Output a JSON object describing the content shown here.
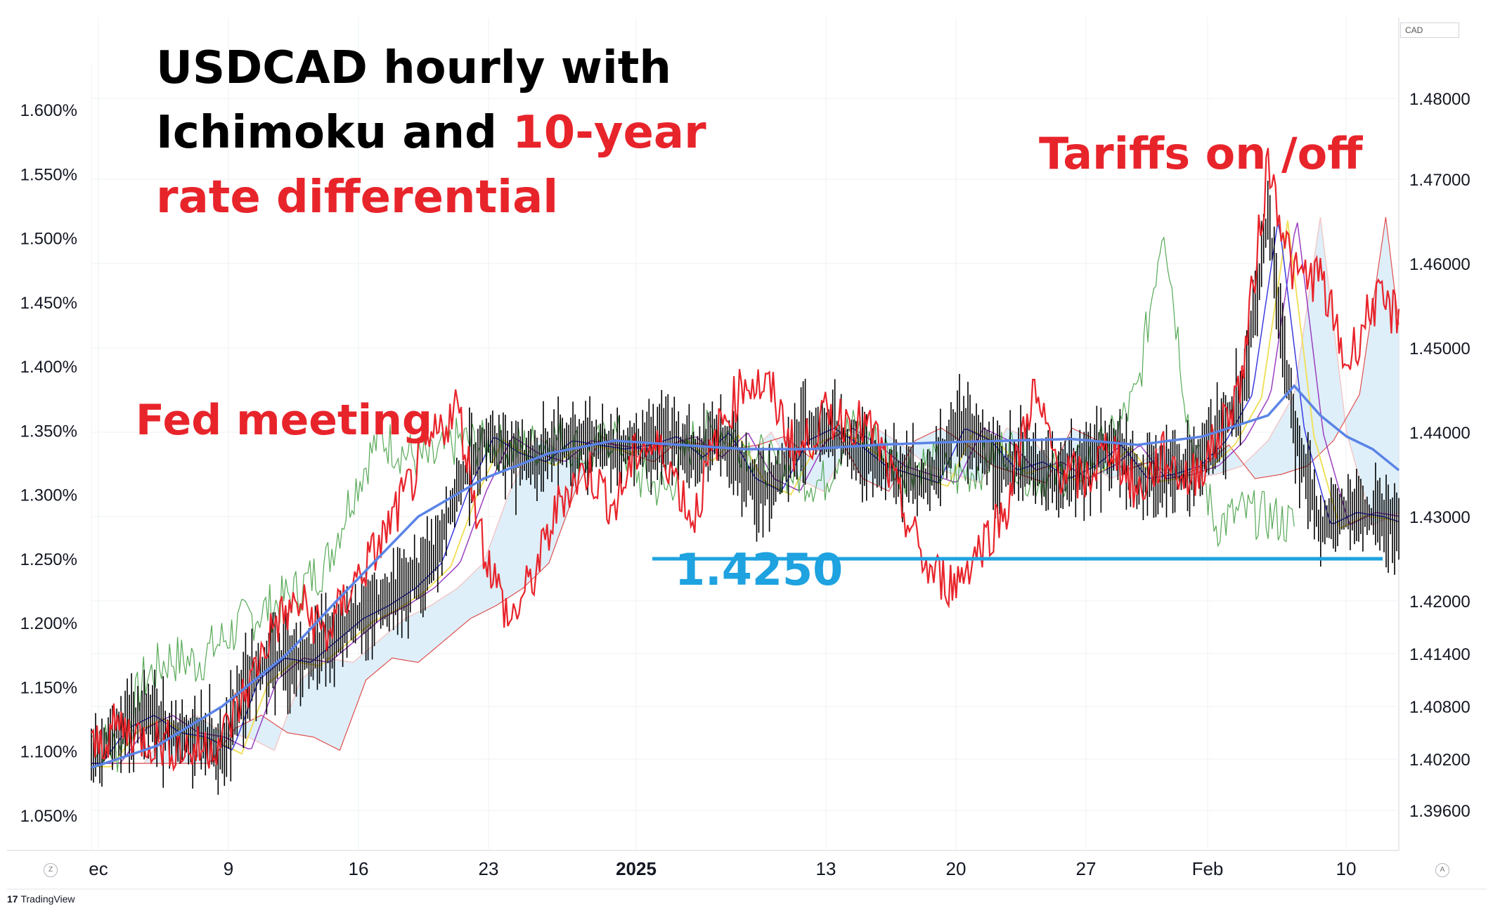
{
  "title": {
    "line1": "USDCAD hourly with",
    "line2_black": "Ichimoku and ",
    "line2_red": "10-year",
    "line3_red": "rate differential"
  },
  "annotations": {
    "fed": "Fed meeting",
    "tariffs": "Tariffs on /off",
    "level": "1.4250"
  },
  "currency_label": "CAD",
  "brand": "TradingView",
  "corner_left": "Z",
  "corner_right": "A",
  "colors": {
    "price": "#000000",
    "rate_diff": "#e8242b",
    "ma_long": "#5b84e6",
    "support": "#1ea2e0",
    "lagging_span": "#3a9a3a",
    "cloud_fill": "#d6ebf8"
  },
  "chart_data": {
    "type": "line",
    "x_axis": {
      "tick_labels": [
        "ec",
        "9",
        "16",
        "23",
        "2025",
        "13",
        "20",
        "27",
        "Feb",
        "10"
      ],
      "bold_tick": "2025"
    },
    "left_axis": {
      "unit": "%",
      "range": [
        1.02,
        1.64
      ],
      "ticks": [
        "1.050%",
        "1.100%",
        "1.150%",
        "1.200%",
        "1.250%",
        "1.300%",
        "1.350%",
        "1.400%",
        "1.450%",
        "1.500%",
        "1.550%",
        "1.600%"
      ]
    },
    "right_axis": {
      "range": [
        1.3925,
        1.4825
      ],
      "ticks": [
        "1.39600",
        "1.40200",
        "1.40800",
        "1.41400",
        "1.42000",
        "1.43000",
        "1.44000",
        "1.45000",
        "1.46000",
        "1.47000",
        "1.48000"
      ]
    },
    "support_level": 1.425,
    "series": [
      {
        "name": "USDCAD",
        "axis": "right",
        "x": [
          0,
          2,
          4,
          6,
          8,
          10,
          12,
          14,
          16,
          18,
          20,
          22,
          24,
          26,
          28,
          30,
          32,
          34,
          36,
          38,
          40,
          42,
          44,
          46,
          48,
          50,
          52,
          54,
          56,
          58,
          60,
          62,
          64,
          66,
          68,
          70,
          72,
          74,
          76,
          78,
          80,
          82,
          84,
          86,
          88,
          90,
          92,
          94,
          96,
          98,
          100
        ],
        "values": [
          1.4015,
          1.4055,
          1.407,
          1.405,
          1.4045,
          1.403,
          1.411,
          1.4135,
          1.413,
          1.4155,
          1.418,
          1.4195,
          1.4215,
          1.4245,
          1.433,
          1.4395,
          1.4375,
          1.4365,
          1.439,
          1.4385,
          1.438,
          1.4385,
          1.4395,
          1.437,
          1.44,
          1.4345,
          1.433,
          1.439,
          1.4405,
          1.4385,
          1.436,
          1.435,
          1.434,
          1.4405,
          1.439,
          1.4355,
          1.4365,
          1.4345,
          1.436,
          1.4385,
          1.4345,
          1.435,
          1.436,
          1.439,
          1.4445,
          1.4655,
          1.44,
          1.429,
          1.4305,
          1.43,
          1.429
        ]
      },
      {
        "name": "10-year rate differential",
        "axis": "left",
        "x": [
          0,
          2,
          4,
          6,
          8,
          10,
          12,
          14,
          16,
          18,
          20,
          22,
          24,
          26,
          28,
          30,
          32,
          34,
          36,
          38,
          40,
          42,
          44,
          46,
          48,
          50,
          52,
          54,
          56,
          58,
          60,
          62,
          64,
          66,
          68,
          70,
          72,
          74,
          76,
          78,
          80,
          82,
          84,
          86,
          88,
          90,
          92,
          94,
          96,
          98,
          100
        ],
        "values": [
          1.1,
          1.12,
          1.11,
          1.105,
          1.1,
          1.11,
          1.15,
          1.2,
          1.215,
          1.19,
          1.23,
          1.26,
          1.3,
          1.34,
          1.37,
          1.26,
          1.2,
          1.24,
          1.3,
          1.32,
          1.29,
          1.34,
          1.33,
          1.28,
          1.35,
          1.39,
          1.38,
          1.33,
          1.36,
          1.36,
          1.345,
          1.29,
          1.24,
          1.23,
          1.26,
          1.29,
          1.38,
          1.32,
          1.31,
          1.34,
          1.3,
          1.33,
          1.31,
          1.34,
          1.39,
          1.56,
          1.47,
          1.47,
          1.4,
          1.45,
          1.44
        ]
      },
      {
        "name": "long moving average",
        "axis": "right",
        "x": [
          0,
          5,
          10,
          15,
          20,
          25,
          30,
          35,
          40,
          45,
          50,
          55,
          60,
          65,
          70,
          75,
          80,
          85,
          90,
          92,
          94,
          96,
          98,
          100
        ],
        "values": [
          1.401,
          1.4035,
          1.408,
          1.414,
          1.422,
          1.43,
          1.4345,
          1.4375,
          1.439,
          1.4385,
          1.438,
          1.438,
          1.4385,
          1.4388,
          1.439,
          1.4392,
          1.4385,
          1.4395,
          1.442,
          1.4455,
          1.442,
          1.4395,
          1.438,
          1.4355
        ]
      }
    ]
  }
}
